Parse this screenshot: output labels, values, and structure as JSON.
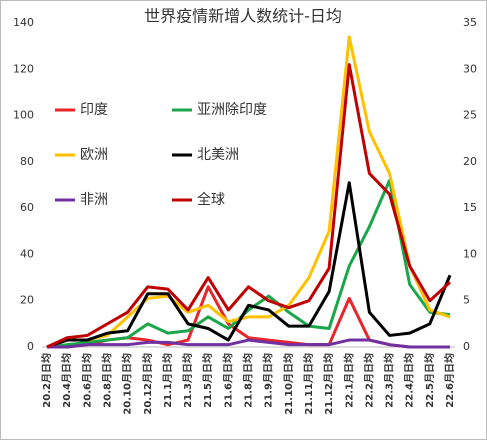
{
  "chart_data": {
    "type": "line",
    "title": "世界疫情新增人数统计-日均",
    "categories": [
      "20.2月日均",
      "20.4月日均",
      "20.6月日均",
      "20.8月日均",
      "20.10月日均",
      "20.12月日均",
      "21.1月日均",
      "21.3月日均",
      "21.5月日均",
      "21.6月日均",
      "21.8月日均",
      "21.9月日均",
      "21.10月日均",
      "21.11月日均",
      "21.12月日均",
      "22.1月日均",
      "22.2月日均",
      "22.3月日均",
      "22.4月日均",
      "22.5月日均",
      "22.6月日均"
    ],
    "series": [
      {
        "name": "印度",
        "color": "#e8262a",
        "values": [
          0,
          0,
          1,
          3,
          4,
          3,
          1,
          3,
          26,
          10,
          4,
          3,
          2,
          1,
          1,
          21,
          3,
          1,
          0,
          0,
          0
        ]
      },
      {
        "name": "亚洲除印度",
        "color": "#1aa64a",
        "values": [
          0,
          1,
          2,
          3,
          4,
          10,
          6,
          7,
          13,
          8,
          16,
          22,
          15,
          9,
          8,
          35,
          52,
          72,
          27,
          15,
          14
        ]
      },
      {
        "name": "欧洲",
        "color": "#ffc000",
        "values": [
          0,
          3,
          3,
          5,
          13,
          21,
          22,
          15,
          18,
          11,
          13,
          13,
          18,
          30,
          50,
          134,
          93,
          75,
          35,
          16,
          13
        ]
      },
      {
        "name": "北美洲",
        "color": "#000000",
        "values": [
          0,
          3,
          3,
          6,
          7,
          23,
          23,
          10,
          8,
          3,
          18,
          16,
          9,
          9,
          24,
          71,
          15,
          5,
          6,
          10,
          31
        ]
      },
      {
        "name": "非洲",
        "color": "#7030a0",
        "values": [
          0,
          0,
          1,
          1,
          1,
          2,
          2,
          1,
          1,
          1,
          3,
          2,
          1,
          1,
          1,
          3,
          3,
          1,
          0,
          0,
          0
        ]
      },
      {
        "name": "全球",
        "color": "#c00000",
        "values": [
          0,
          4,
          5,
          10,
          15,
          26,
          25,
          16,
          30,
          16,
          26,
          20,
          17,
          20,
          34,
          122,
          75,
          66,
          35,
          20,
          28
        ]
      }
    ],
    "ylim": [
      0,
      140
    ],
    "yticks": [
      0,
      20,
      40,
      60,
      80,
      100,
      120,
      140
    ],
    "y2lim": [
      0,
      35
    ],
    "y2ticks": [
      0,
      5,
      10,
      15,
      20,
      25,
      30,
      35
    ],
    "grid": false
  }
}
